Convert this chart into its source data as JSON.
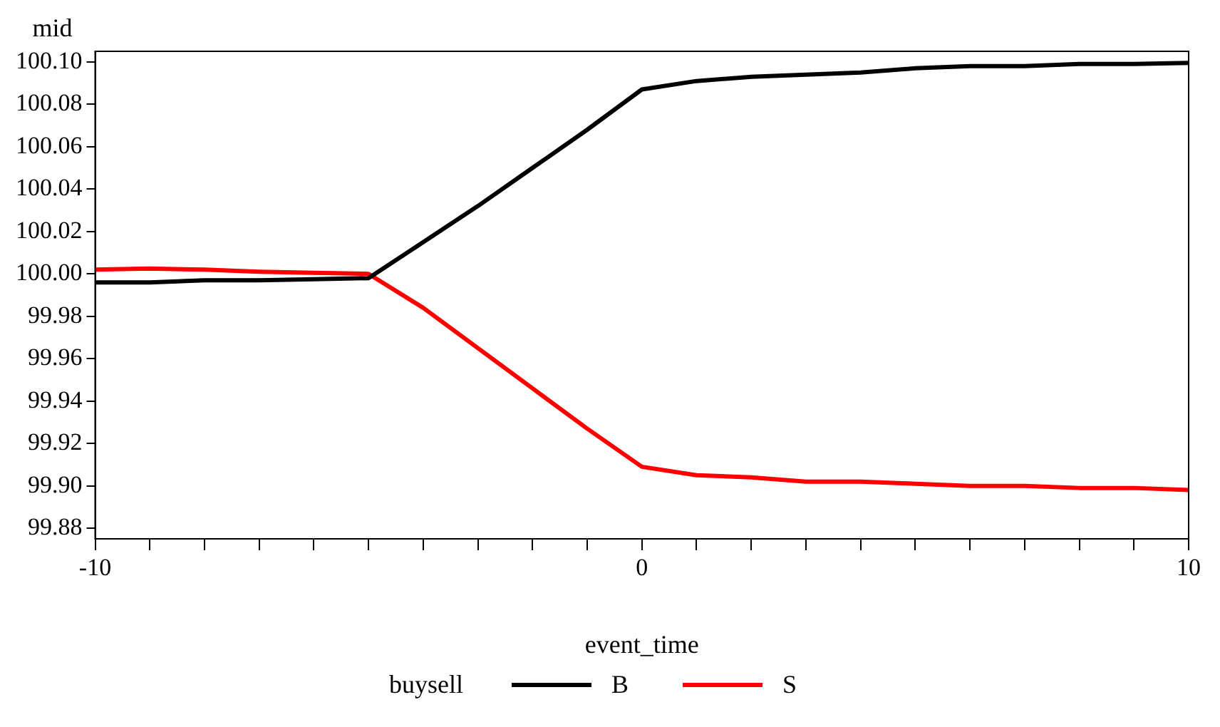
{
  "chart_data": {
    "type": "line",
    "xlabel": "event_time",
    "ylabel": "mid",
    "legend_title": "buysell",
    "legend": "bottom",
    "grid": false,
    "marker": "none",
    "line_style": "solid",
    "x": [
      -10,
      -9,
      -8,
      -7,
      -6,
      -5,
      -4,
      -3,
      -2,
      -1,
      0,
      1,
      2,
      3,
      4,
      5,
      6,
      7,
      8,
      9,
      10
    ],
    "xlim": [
      -10,
      10
    ],
    "xticks": [
      -10,
      {
        "value": -9,
        "label": null
      },
      {
        "value": -8,
        "label": null
      },
      {
        "value": -7,
        "label": null
      },
      {
        "value": -6,
        "label": null
      },
      {
        "value": -5,
        "label": null
      },
      {
        "value": -4,
        "label": null
      },
      {
        "value": -3,
        "label": null
      },
      {
        "value": -2,
        "label": null
      },
      {
        "value": -1,
        "label": null
      },
      0,
      {
        "value": 1,
        "label": null
      },
      {
        "value": 2,
        "label": null
      },
      {
        "value": 3,
        "label": null
      },
      {
        "value": 4,
        "label": null
      },
      {
        "value": 5,
        "label": null
      },
      {
        "value": 6,
        "label": null
      },
      {
        "value": 7,
        "label": null
      },
      {
        "value": 8,
        "label": null
      },
      {
        "value": 9,
        "label": null
      },
      10
    ],
    "ylim": [
      99.875,
      100.105
    ],
    "yticks": [
      {
        "value": 99.88,
        "label": "99.88"
      },
      {
        "value": 99.9,
        "label": "99.90"
      },
      {
        "value": 99.92,
        "label": "99.92"
      },
      {
        "value": 99.94,
        "label": "99.94"
      },
      {
        "value": 99.96,
        "label": "99.96"
      },
      {
        "value": 99.98,
        "label": "99.98"
      },
      {
        "value": 100,
        "label": "100.00"
      },
      {
        "value": 100.02,
        "label": "100.02"
      },
      {
        "value": 100.04,
        "label": "100.04"
      },
      {
        "value": 100.06,
        "label": "100.06"
      },
      {
        "value": 100.08,
        "label": "100.08"
      },
      {
        "value": 100.1,
        "label": "100.10"
      }
    ],
    "series": [
      {
        "name": "B",
        "color": "#000000",
        "values": [
          99.996,
          99.996,
          99.997,
          99.997,
          99.9975,
          99.998,
          100.015,
          100.032,
          100.05,
          100.068,
          100.087,
          100.091,
          100.093,
          100.094,
          100.095,
          100.097,
          100.098,
          100.098,
          100.099,
          100.099,
          100.0995
        ]
      },
      {
        "name": "S",
        "color": "#ff0000",
        "values": [
          100.002,
          100.0025,
          100.002,
          100.001,
          100.0005,
          100,
          99.984,
          99.965,
          99.946,
          99.927,
          99.909,
          99.905,
          99.904,
          99.902,
          99.902,
          99.901,
          99.9,
          99.9,
          99.899,
          99.899,
          99.898
        ]
      }
    ]
  }
}
